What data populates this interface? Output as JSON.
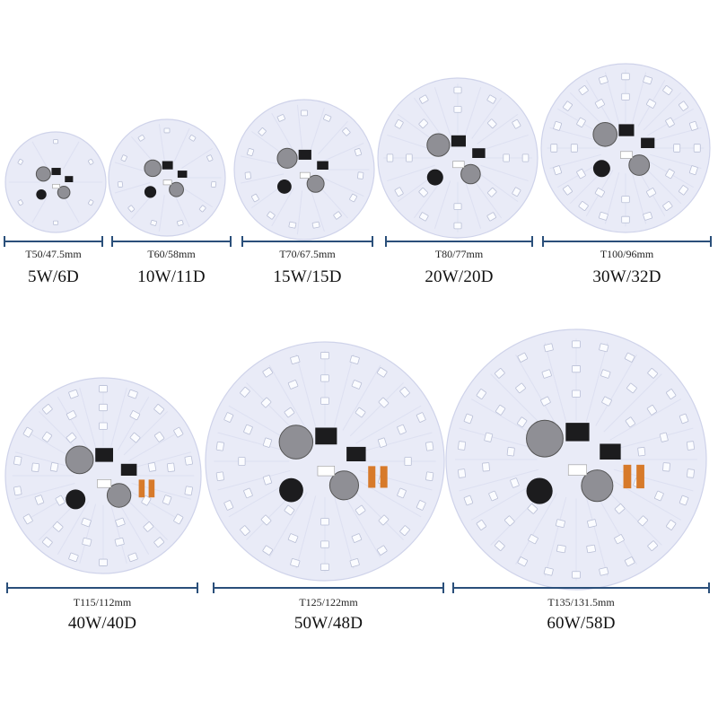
{
  "boards": [
    {
      "size_label": "T50/47.5mm",
      "spec_label": "5W/6D",
      "led_count": 6
    },
    {
      "size_label": "T60/58mm",
      "spec_label": "10W/11D",
      "led_count": 11
    },
    {
      "size_label": "T70/67.5mm",
      "spec_label": "15W/15D",
      "led_count": 15
    },
    {
      "size_label": "T80/77mm",
      "spec_label": "20W/20D",
      "led_count": 20
    },
    {
      "size_label": "T100/96mm",
      "spec_label": "30W/32D",
      "led_count": 32
    },
    {
      "size_label": "T115/112mm",
      "spec_label": "40W/40D",
      "led_count": 40
    },
    {
      "size_label": "T125/122mm",
      "spec_label": "50W/48D",
      "led_count": 48
    },
    {
      "size_label": "T135/131.5mm",
      "spec_label": "60W/58D",
      "led_count": 58
    }
  ],
  "colors": {
    "board": "#e9ebf7",
    "board_edge": "#cfd3ea",
    "led": "#fbfcff",
    "led_edge": "#b9bfd6",
    "dimension_line": "#2a4f7a",
    "component_dark": "#1c1c1e",
    "capacitor": "#8f8f95",
    "resistor": "#d77a2a"
  }
}
